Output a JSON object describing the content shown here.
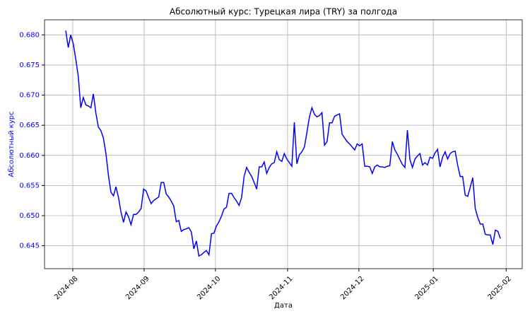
{
  "chart_data": {
    "type": "line",
    "title": "Абсолютный курс: Турецкая лира (TRY) за полгода",
    "xlabel": "Дата",
    "ylabel": "Абсолютный курс",
    "series": [
      {
        "color": "#0000ff",
        "values": [
          0.6807,
          0.6779,
          0.68,
          0.6785,
          0.676,
          0.6731,
          0.6679,
          0.6696,
          0.6684,
          0.6682,
          0.6679,
          0.6702,
          0.667,
          0.6647,
          0.6641,
          0.6629,
          0.6603,
          0.6567,
          0.6539,
          0.6533,
          0.6548,
          0.653,
          0.6506,
          0.6489,
          0.6506,
          0.6498,
          0.6485,
          0.6502,
          0.6502,
          0.6506,
          0.6512,
          0.6544,
          0.6541,
          0.653,
          0.652,
          0.6525,
          0.6528,
          0.6531,
          0.6555,
          0.6555,
          0.6536,
          0.6531,
          0.6524,
          0.6516,
          0.649,
          0.6492,
          0.6474,
          0.6477,
          0.6478,
          0.648,
          0.6473,
          0.6445,
          0.6458,
          0.6433,
          0.6435,
          0.6439,
          0.6442,
          0.6435,
          0.647,
          0.6471,
          0.6483,
          0.649,
          0.6499,
          0.6511,
          0.6514,
          0.6537,
          0.6537,
          0.653,
          0.6524,
          0.6517,
          0.653,
          0.6565,
          0.658,
          0.6572,
          0.6565,
          0.6555,
          0.6544,
          0.6581,
          0.6581,
          0.6589,
          0.657,
          0.658,
          0.6586,
          0.6588,
          0.6606,
          0.6593,
          0.659,
          0.6603,
          0.6594,
          0.6588,
          0.6582,
          0.6655,
          0.6586,
          0.6601,
          0.6606,
          0.6614,
          0.6638,
          0.6664,
          0.6679,
          0.6668,
          0.6664,
          0.6666,
          0.6671,
          0.6617,
          0.6623,
          0.6654,
          0.6654,
          0.6665,
          0.6667,
          0.6669,
          0.6635,
          0.6629,
          0.6623,
          0.6619,
          0.6614,
          0.6609,
          0.6619,
          0.6616,
          0.6619,
          0.6582,
          0.6582,
          0.6581,
          0.657,
          0.6581,
          0.6584,
          0.6581,
          0.6581,
          0.658,
          0.6582,
          0.6583,
          0.6623,
          0.6609,
          0.6602,
          0.6593,
          0.6585,
          0.658,
          0.6642,
          0.6593,
          0.658,
          0.6594,
          0.6599,
          0.6603,
          0.6584,
          0.6588,
          0.6584,
          0.6597,
          0.6595,
          0.6604,
          0.661,
          0.6581,
          0.6597,
          0.6606,
          0.6594,
          0.6603,
          0.6606,
          0.6607,
          0.6584,
          0.6565,
          0.6565,
          0.6534,
          0.6532,
          0.6547,
          0.6563,
          0.6512,
          0.6497,
          0.6486,
          0.6486,
          0.6469,
          0.6468,
          0.6468,
          0.6452,
          0.6476,
          0.6474,
          0.6462
        ]
      }
    ],
    "xlim": [
      -8.44,
      181.7
    ],
    "xticks": [
      {
        "value": 2.8,
        "label": "2024-08"
      },
      {
        "value": 31.2,
        "label": "2024-09"
      },
      {
        "value": 59.6,
        "label": "2024-10"
      },
      {
        "value": 88.3,
        "label": "2024-11"
      },
      {
        "value": 116.7,
        "label": "2024-12"
      },
      {
        "value": 146.3,
        "label": "2025-01"
      },
      {
        "value": 175.3,
        "label": "2025-02"
      }
    ],
    "ylim": [
      0.6412,
      0.6825
    ],
    "yticks": [
      0.645,
      {
        "value": 0.65,
        "label": "0.650"
      },
      0.655,
      {
        "value": 0.66,
        "label": "0.660"
      },
      0.665,
      {
        "value": 0.67,
        "label": "0.670"
      },
      0.675,
      {
        "value": 0.68,
        "label": "0.680"
      }
    ],
    "grid": true
  }
}
